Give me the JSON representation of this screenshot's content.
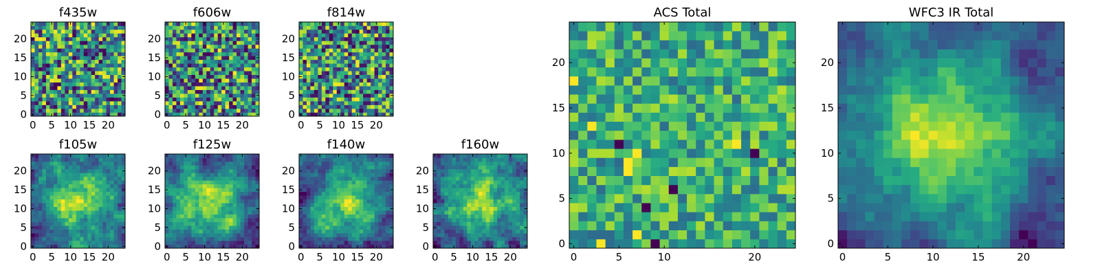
{
  "chart_data": [
    {
      "type": "heatmap",
      "title": "f435w",
      "x_ticks": [
        0,
        5,
        10,
        15,
        20
      ],
      "y_ticks": [
        0,
        5,
        10,
        15,
        20
      ],
      "xlim": [
        0,
        25
      ],
      "ylim": [
        0,
        25
      ],
      "grid_size": [
        25,
        25
      ],
      "colormap": "viridis",
      "pattern": "noise",
      "seed": 11
    },
    {
      "type": "heatmap",
      "title": "f606w",
      "x_ticks": [
        0,
        5,
        10,
        15,
        20
      ],
      "y_ticks": [
        0,
        5,
        10,
        15,
        20
      ],
      "xlim": [
        0,
        25
      ],
      "ylim": [
        0,
        25
      ],
      "grid_size": [
        25,
        25
      ],
      "colormap": "viridis",
      "pattern": "noise",
      "seed": 23
    },
    {
      "type": "heatmap",
      "title": "f814w",
      "x_ticks": [
        0,
        5,
        10,
        15,
        20
      ],
      "y_ticks": [
        0,
        5,
        10,
        15,
        20
      ],
      "xlim": [
        0,
        25
      ],
      "ylim": [
        0,
        25
      ],
      "grid_size": [
        25,
        25
      ],
      "colormap": "viridis",
      "pattern": "noise",
      "seed": 37
    },
    {
      "type": "heatmap",
      "title": "f105w",
      "x_ticks": [
        0,
        5,
        10,
        15,
        20
      ],
      "y_ticks": [
        0,
        5,
        10,
        15,
        20
      ],
      "xlim": [
        0,
        25
      ],
      "ylim": [
        0,
        25
      ],
      "grid_size": [
        25,
        25
      ],
      "colormap": "viridis",
      "pattern": "smooth",
      "seed": 41
    },
    {
      "type": "heatmap",
      "title": "f125w",
      "x_ticks": [
        0,
        5,
        10,
        15,
        20
      ],
      "y_ticks": [
        0,
        5,
        10,
        15,
        20
      ],
      "xlim": [
        0,
        25
      ],
      "ylim": [
        0,
        25
      ],
      "grid_size": [
        25,
        25
      ],
      "colormap": "viridis",
      "pattern": "smooth",
      "seed": 53
    },
    {
      "type": "heatmap",
      "title": "f140w",
      "x_ticks": [
        0,
        5,
        10,
        15,
        20
      ],
      "y_ticks": [
        0,
        5,
        10,
        15,
        20
      ],
      "xlim": [
        0,
        25
      ],
      "ylim": [
        0,
        25
      ],
      "grid_size": [
        25,
        25
      ],
      "colormap": "viridis",
      "pattern": "smooth",
      "seed": 67
    },
    {
      "type": "heatmap",
      "title": "f160w",
      "x_ticks": [
        0,
        5,
        10,
        15,
        20
      ],
      "y_ticks": [
        0,
        5,
        10,
        15,
        20
      ],
      "xlim": [
        0,
        25
      ],
      "ylim": [
        0,
        25
      ],
      "grid_size": [
        25,
        25
      ],
      "colormap": "viridis",
      "pattern": "smooth",
      "seed": 79
    },
    {
      "type": "heatmap",
      "title": "ACS Total",
      "x_ticks": [
        0,
        5,
        10,
        20
      ],
      "y_ticks": [
        0,
        5,
        10,
        15,
        20
      ],
      "xlim": [
        0,
        25
      ],
      "ylim": [
        0,
        25
      ],
      "grid_size": [
        25,
        25
      ],
      "colormap": "viridis",
      "pattern": "noise-high",
      "seed": 97
    },
    {
      "type": "heatmap",
      "title": "WFC3 IR Total",
      "x_ticks": [
        0,
        5,
        10,
        15,
        20
      ],
      "y_ticks": [
        0,
        5,
        10,
        15,
        20
      ],
      "xlim": [
        0,
        25
      ],
      "ylim": [
        0,
        25
      ],
      "grid_size": [
        25,
        25
      ],
      "colormap": "viridis",
      "pattern": "smooth-peak",
      "seed": 131
    }
  ]
}
